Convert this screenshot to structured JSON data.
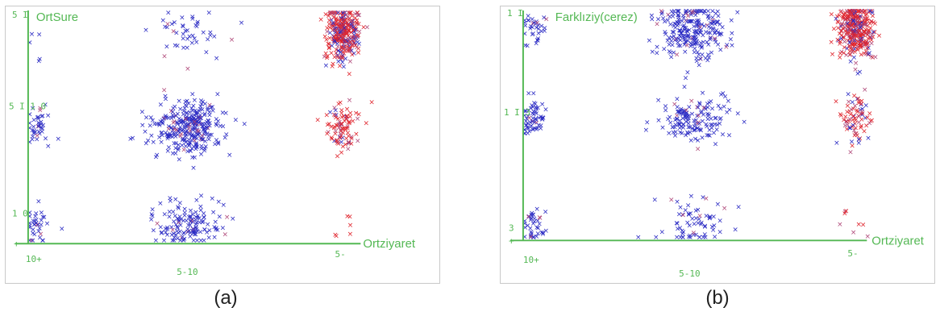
{
  "colors": {
    "axis": "#54b854",
    "blue": "#2c2cc4",
    "red": "#e0242c",
    "marker_alt": "#b04a7a"
  },
  "captions": {
    "a": "(a)",
    "b": "(b)"
  },
  "chart_data": [
    {
      "type": "scatter",
      "marker": "x",
      "ylabel": "OrtSure",
      "xlabel": "Ortziyaret",
      "x_tick_labels": [
        "10+",
        "5-10",
        "5-"
      ],
      "y_tick_labels": [
        "5 I",
        "5 I 1 0",
        "1 0",
        "+"
      ],
      "grid": false,
      "clusters": [
        {
          "x": "10+",
          "y": "1 0",
          "color": "blue",
          "count": 35
        },
        {
          "x": "10+",
          "y": "5 I 1 0",
          "color": "blue",
          "count": 40
        },
        {
          "x": "10+",
          "y": "5 I",
          "color": "blue",
          "count": 5
        },
        {
          "x": "5-10",
          "y": "5 I",
          "color": "blue",
          "count": 45
        },
        {
          "x": "5-10",
          "y": "5 I 1 0",
          "color": "blue",
          "count": 320
        },
        {
          "x": "5-10",
          "y": "1 0",
          "color": "blue",
          "count": 140
        },
        {
          "x": "5-",
          "y": "5 I",
          "color": "red",
          "count": 320
        },
        {
          "x": "5-",
          "y": "5 I 1 0",
          "color": "red",
          "count": 95
        },
        {
          "x": "5-",
          "y": "1 0",
          "color": "red",
          "count": 6
        }
      ]
    },
    {
      "type": "scatter",
      "marker": "x",
      "ylabel": "Farklıziy(cerez)",
      "xlabel": "Ortziyaret",
      "x_tick_labels": [
        "10+",
        "5-10",
        "5-"
      ],
      "y_tick_labels": [
        "1 I",
        "1 I 3",
        "3",
        "+"
      ],
      "grid": false,
      "clusters": [
        {
          "x": "10+",
          "y": "3",
          "color": "blue",
          "count": 40
        },
        {
          "x": "10+",
          "y": "1 I 3",
          "color": "blue",
          "count": 60
        },
        {
          "x": "10+",
          "y": "1 I",
          "color": "blue",
          "count": 35
        },
        {
          "x": "5-10",
          "y": "1 I",
          "color": "blue",
          "count": 240
        },
        {
          "x": "5-10",
          "y": "1 I 3",
          "color": "blue",
          "count": 150
        },
        {
          "x": "5-10",
          "y": "3",
          "color": "blue",
          "count": 70
        },
        {
          "x": "5-",
          "y": "1 I",
          "color": "red",
          "count": 340
        },
        {
          "x": "5-",
          "y": "1 I 3",
          "color": "red",
          "count": 80
        },
        {
          "x": "5-",
          "y": "3",
          "color": "red",
          "count": 8
        }
      ]
    }
  ]
}
